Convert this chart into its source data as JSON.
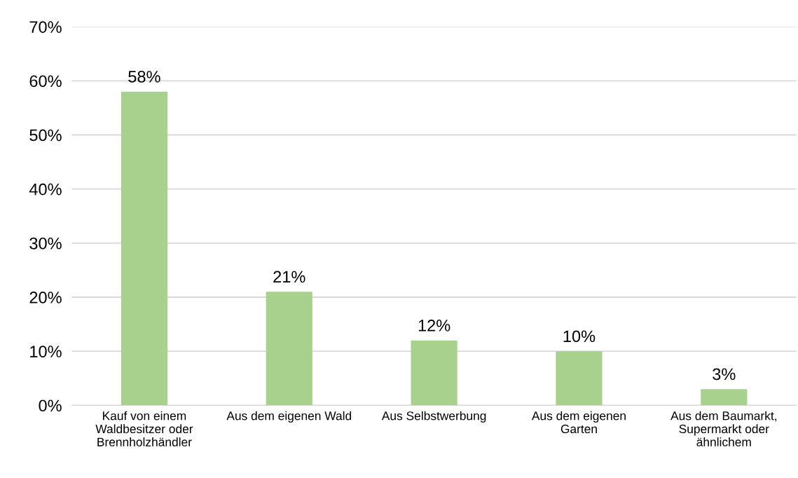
{
  "chart_data": {
    "type": "bar",
    "categories": [
      "Kauf von einem\nWaldbesitzer oder\nBrennholzhändler",
      "Aus dem eigenen Wald",
      "Aus Selbstwerbung",
      "Aus dem eigenen\nGarten",
      "Aus dem Baumarkt,\nSupermarkt oder\nähnlichem"
    ],
    "values": [
      58,
      21,
      12,
      10,
      3
    ],
    "value_labels": [
      "58%",
      "21%",
      "12%",
      "10%",
      "3%"
    ],
    "color": "#a9d18e",
    "ylim": [
      0,
      70
    ],
    "yticks": [
      {
        "value": 0,
        "label": "0%"
      },
      {
        "value": 10,
        "label": "10%"
      },
      {
        "value": 20,
        "label": "20%"
      },
      {
        "value": 30,
        "label": "30%"
      },
      {
        "value": 40,
        "label": "40%"
      },
      {
        "value": 50,
        "label": "50%"
      },
      {
        "value": 60,
        "label": "60%"
      },
      {
        "value": 70,
        "label": "70%"
      }
    ],
    "grid": "y",
    "legend": false
  }
}
